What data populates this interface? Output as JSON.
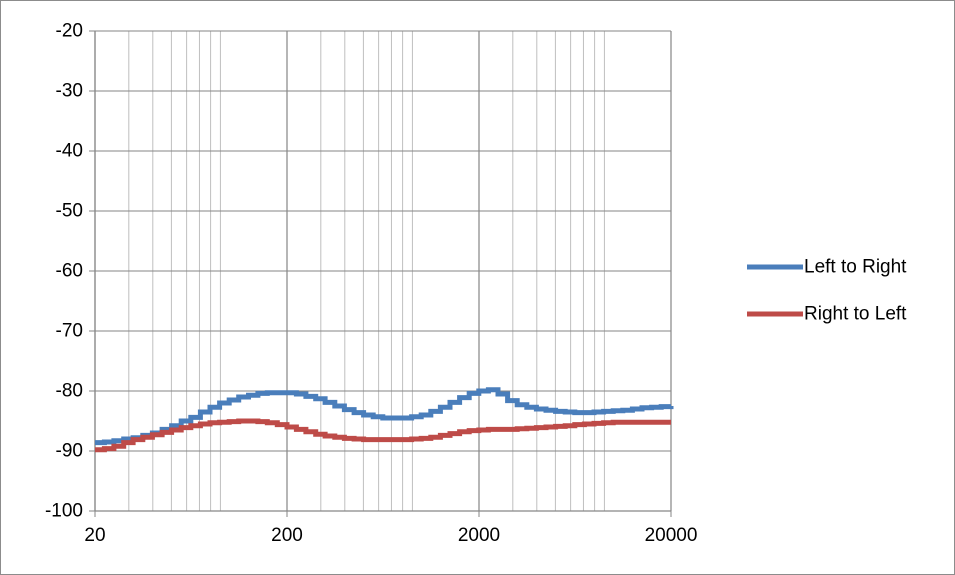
{
  "chart_data": {
    "type": "line",
    "title": "",
    "xlabel": "",
    "ylabel": "",
    "x_scale": "log",
    "xlim": [
      20,
      20000
    ],
    "ylim": [
      -100,
      -20
    ],
    "x_ticks": [
      20,
      200,
      2000,
      20000
    ],
    "x_tick_labels": [
      "20",
      "200",
      "2000",
      "20000"
    ],
    "y_ticks": [
      -20,
      -30,
      -40,
      -50,
      -60,
      -70,
      -80,
      -90,
      -100
    ],
    "y_tick_labels": [
      "-20",
      "-30",
      "-40",
      "-50",
      "-60",
      "-70",
      "-80",
      "-90",
      "-100"
    ],
    "grid": {
      "major_y": true,
      "major_x": true,
      "minor_x": true
    },
    "legend_position": "right",
    "step_line": true,
    "series": [
      {
        "name": "Left to Right",
        "color": "#4a7ebb",
        "points": [
          [
            20,
            -88.6
          ],
          [
            22.4,
            -88.5
          ],
          [
            25.1,
            -88.3
          ],
          [
            28.2,
            -88.0
          ],
          [
            31.6,
            -87.8
          ],
          [
            35.5,
            -87.4
          ],
          [
            39.8,
            -87.0
          ],
          [
            44.7,
            -86.4
          ],
          [
            50.1,
            -85.8
          ],
          [
            56.2,
            -85.0
          ],
          [
            63.1,
            -84.4
          ],
          [
            70.8,
            -83.5
          ],
          [
            79.4,
            -82.7
          ],
          [
            89.1,
            -82.0
          ],
          [
            100,
            -81.5
          ],
          [
            112,
            -81.0
          ],
          [
            126,
            -80.7
          ],
          [
            141,
            -80.4
          ],
          [
            158,
            -80.3
          ],
          [
            178,
            -80.3
          ],
          [
            200,
            -80.3
          ],
          [
            224,
            -80.5
          ],
          [
            251,
            -80.9
          ],
          [
            282,
            -81.3
          ],
          [
            316,
            -81.9
          ],
          [
            355,
            -82.5
          ],
          [
            398,
            -83.1
          ],
          [
            447,
            -83.6
          ],
          [
            501,
            -84.0
          ],
          [
            562,
            -84.3
          ],
          [
            631,
            -84.5
          ],
          [
            708,
            -84.5
          ],
          [
            794,
            -84.5
          ],
          [
            891,
            -84.3
          ],
          [
            1000,
            -84.0
          ],
          [
            1122,
            -83.4
          ],
          [
            1259,
            -82.7
          ],
          [
            1413,
            -81.9
          ],
          [
            1585,
            -81.1
          ],
          [
            1778,
            -80.4
          ],
          [
            1995,
            -80.0
          ],
          [
            2239,
            -79.8
          ],
          [
            2512,
            -80.5
          ],
          [
            2818,
            -81.6
          ],
          [
            3162,
            -82.3
          ],
          [
            3548,
            -82.7
          ],
          [
            3981,
            -83.0
          ],
          [
            4467,
            -83.2
          ],
          [
            5012,
            -83.4
          ],
          [
            5623,
            -83.5
          ],
          [
            6310,
            -83.6
          ],
          [
            7079,
            -83.6
          ],
          [
            7943,
            -83.5
          ],
          [
            8913,
            -83.4
          ],
          [
            10000,
            -83.3
          ],
          [
            11220,
            -83.2
          ],
          [
            12589,
            -83.0
          ],
          [
            14125,
            -82.8
          ],
          [
            15849,
            -82.7
          ],
          [
            17783,
            -82.6
          ],
          [
            20000,
            -82.5
          ]
        ]
      },
      {
        "name": "Right to Left",
        "color": "#be4b48",
        "points": [
          [
            20,
            -89.8
          ],
          [
            22.4,
            -89.6
          ],
          [
            25.1,
            -89.2
          ],
          [
            28.2,
            -88.6
          ],
          [
            31.6,
            -88.1
          ],
          [
            35.5,
            -87.7
          ],
          [
            39.8,
            -87.3
          ],
          [
            44.7,
            -86.9
          ],
          [
            50.1,
            -86.5
          ],
          [
            56.2,
            -86.1
          ],
          [
            63.1,
            -85.8
          ],
          [
            70.8,
            -85.5
          ],
          [
            79.4,
            -85.3
          ],
          [
            89.1,
            -85.2
          ],
          [
            100,
            -85.1
          ],
          [
            112,
            -85.0
          ],
          [
            126,
            -85.0
          ],
          [
            141,
            -85.1
          ],
          [
            158,
            -85.3
          ],
          [
            178,
            -85.6
          ],
          [
            200,
            -86.0
          ],
          [
            224,
            -86.4
          ],
          [
            251,
            -86.8
          ],
          [
            282,
            -87.2
          ],
          [
            316,
            -87.5
          ],
          [
            355,
            -87.7
          ],
          [
            398,
            -87.9
          ],
          [
            447,
            -88.0
          ],
          [
            501,
            -88.1
          ],
          [
            562,
            -88.1
          ],
          [
            631,
            -88.1
          ],
          [
            708,
            -88.1
          ],
          [
            794,
            -88.1
          ],
          [
            891,
            -88.0
          ],
          [
            1000,
            -87.9
          ],
          [
            1122,
            -87.7
          ],
          [
            1259,
            -87.4
          ],
          [
            1413,
            -87.1
          ],
          [
            1585,
            -86.8
          ],
          [
            1778,
            -86.6
          ],
          [
            1995,
            -86.5
          ],
          [
            2239,
            -86.4
          ],
          [
            2512,
            -86.4
          ],
          [
            2818,
            -86.4
          ],
          [
            3162,
            -86.3
          ],
          [
            3548,
            -86.2
          ],
          [
            3981,
            -86.1
          ],
          [
            4467,
            -86.0
          ],
          [
            5012,
            -85.9
          ],
          [
            5623,
            -85.8
          ],
          [
            6310,
            -85.6
          ],
          [
            7079,
            -85.5
          ],
          [
            7943,
            -85.4
          ],
          [
            8913,
            -85.3
          ],
          [
            10000,
            -85.2
          ],
          [
            11220,
            -85.2
          ],
          [
            12589,
            -85.2
          ],
          [
            14125,
            -85.2
          ],
          [
            15849,
            -85.2
          ],
          [
            17783,
            -85.2
          ],
          [
            20000,
            -85.2
          ]
        ]
      }
    ]
  }
}
